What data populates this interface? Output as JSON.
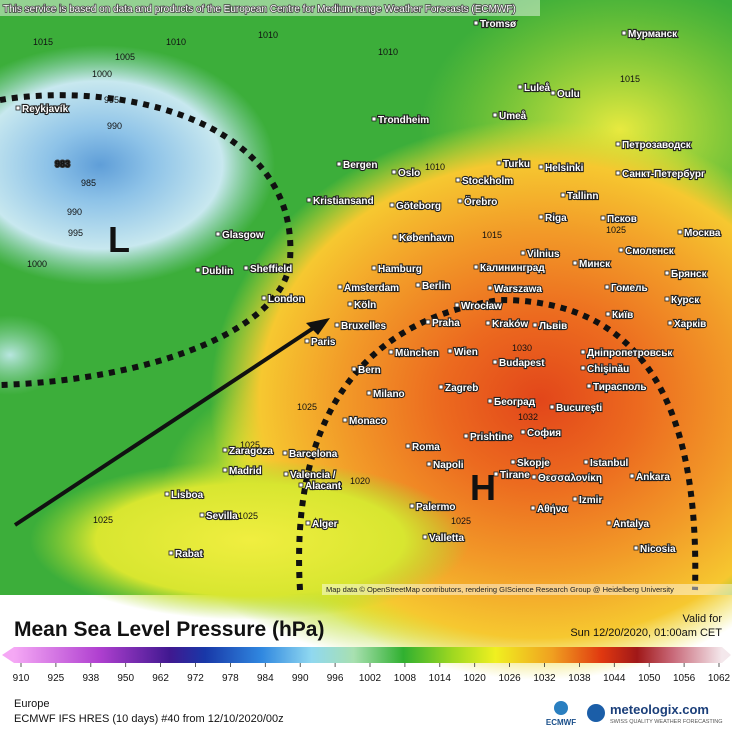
{
  "header": {
    "notice": "This service is based on data and products of the European Centre for Medium-range Weather Forecasts (ECMWF)"
  },
  "map": {
    "attribution": "Map data © OpenStreetMap contributors, rendering GIScience Research Group @ Heidelberg University",
    "low_label": "L",
    "high_label": "H",
    "isobar_labels": [
      1015,
      1010,
      1005,
      1000,
      995,
      990,
      983,
      985,
      990,
      995,
      1000,
      1010,
      1010,
      1015,
      1010,
      1015,
      1025,
      1030,
      1032,
      1025,
      1020,
      1025,
      1025,
      1025,
      1025
    ],
    "cities": [
      "Tromsø",
      "Мурманск",
      "Reykjavík",
      "Luleå",
      "Oulu",
      "Trondheim",
      "Umeå",
      "Петрозаводск",
      "Bergen",
      "Oslo",
      "Turku",
      "Helsinki",
      "Санкт-Петербург",
      "Stockholm",
      "Kristiansand",
      "Göteborg",
      "Örebro",
      "Tallinn",
      "Riga",
      "Псков",
      "Glasgow",
      "København",
      "Vilnius",
      "Москва",
      "Смоленск",
      "Dublin",
      "Sheffield",
      "Hamburg",
      "Калининград",
      "Минск",
      "Брянск",
      "London",
      "Amsterdam",
      "Berlin",
      "Warszawa",
      "Гомель",
      "Курск",
      "Köln",
      "Wrocław",
      "Bruxelles",
      "Praha",
      "Kraków",
      "Львів",
      "Київ",
      "Харків",
      "Paris",
      "München",
      "Wien",
      "Budapest",
      "Днiпропетровськ",
      "Chișinău",
      "Bern",
      "Zagreb",
      "Тирасполь",
      "Milano",
      "Београд",
      "București",
      "Monaco",
      "Prishtine",
      "София",
      "Zaragoza",
      "Barcelona",
      "Roma",
      "Madrid",
      "Valencia /",
      "Alacant",
      "Skopje",
      "Istanbul",
      "Ankara",
      "Napoli",
      "Tirane",
      "Θεσσαλονίκη",
      "Lisboa",
      "Izmir",
      "Sevilla",
      "Alger",
      "Palermo",
      "Αθήνα",
      "Antalya",
      "Valletta",
      "Nicosia",
      "Rabat"
    ]
  },
  "footer": {
    "title": "Mean Sea Level Pressure (hPa)",
    "valid_label": "Valid for",
    "valid_time": "Sun 12/20/2020, 01:00am CET",
    "region": "Europe",
    "model_run": "ECMWF IFS HRES (10 days) #40 from  12/10/2020/00z",
    "ecmwf_logo": "ECMWF",
    "brand": "meteologix.com",
    "brand_tagline": "SWISS QUALITY WEATHER FORECASTING",
    "colorbar_ticks": [
      910,
      925,
      938,
      950,
      962,
      972,
      978,
      984,
      990,
      996,
      1002,
      1008,
      1014,
      1020,
      1026,
      1032,
      1038,
      1044,
      1050,
      1056,
      1062
    ]
  }
}
